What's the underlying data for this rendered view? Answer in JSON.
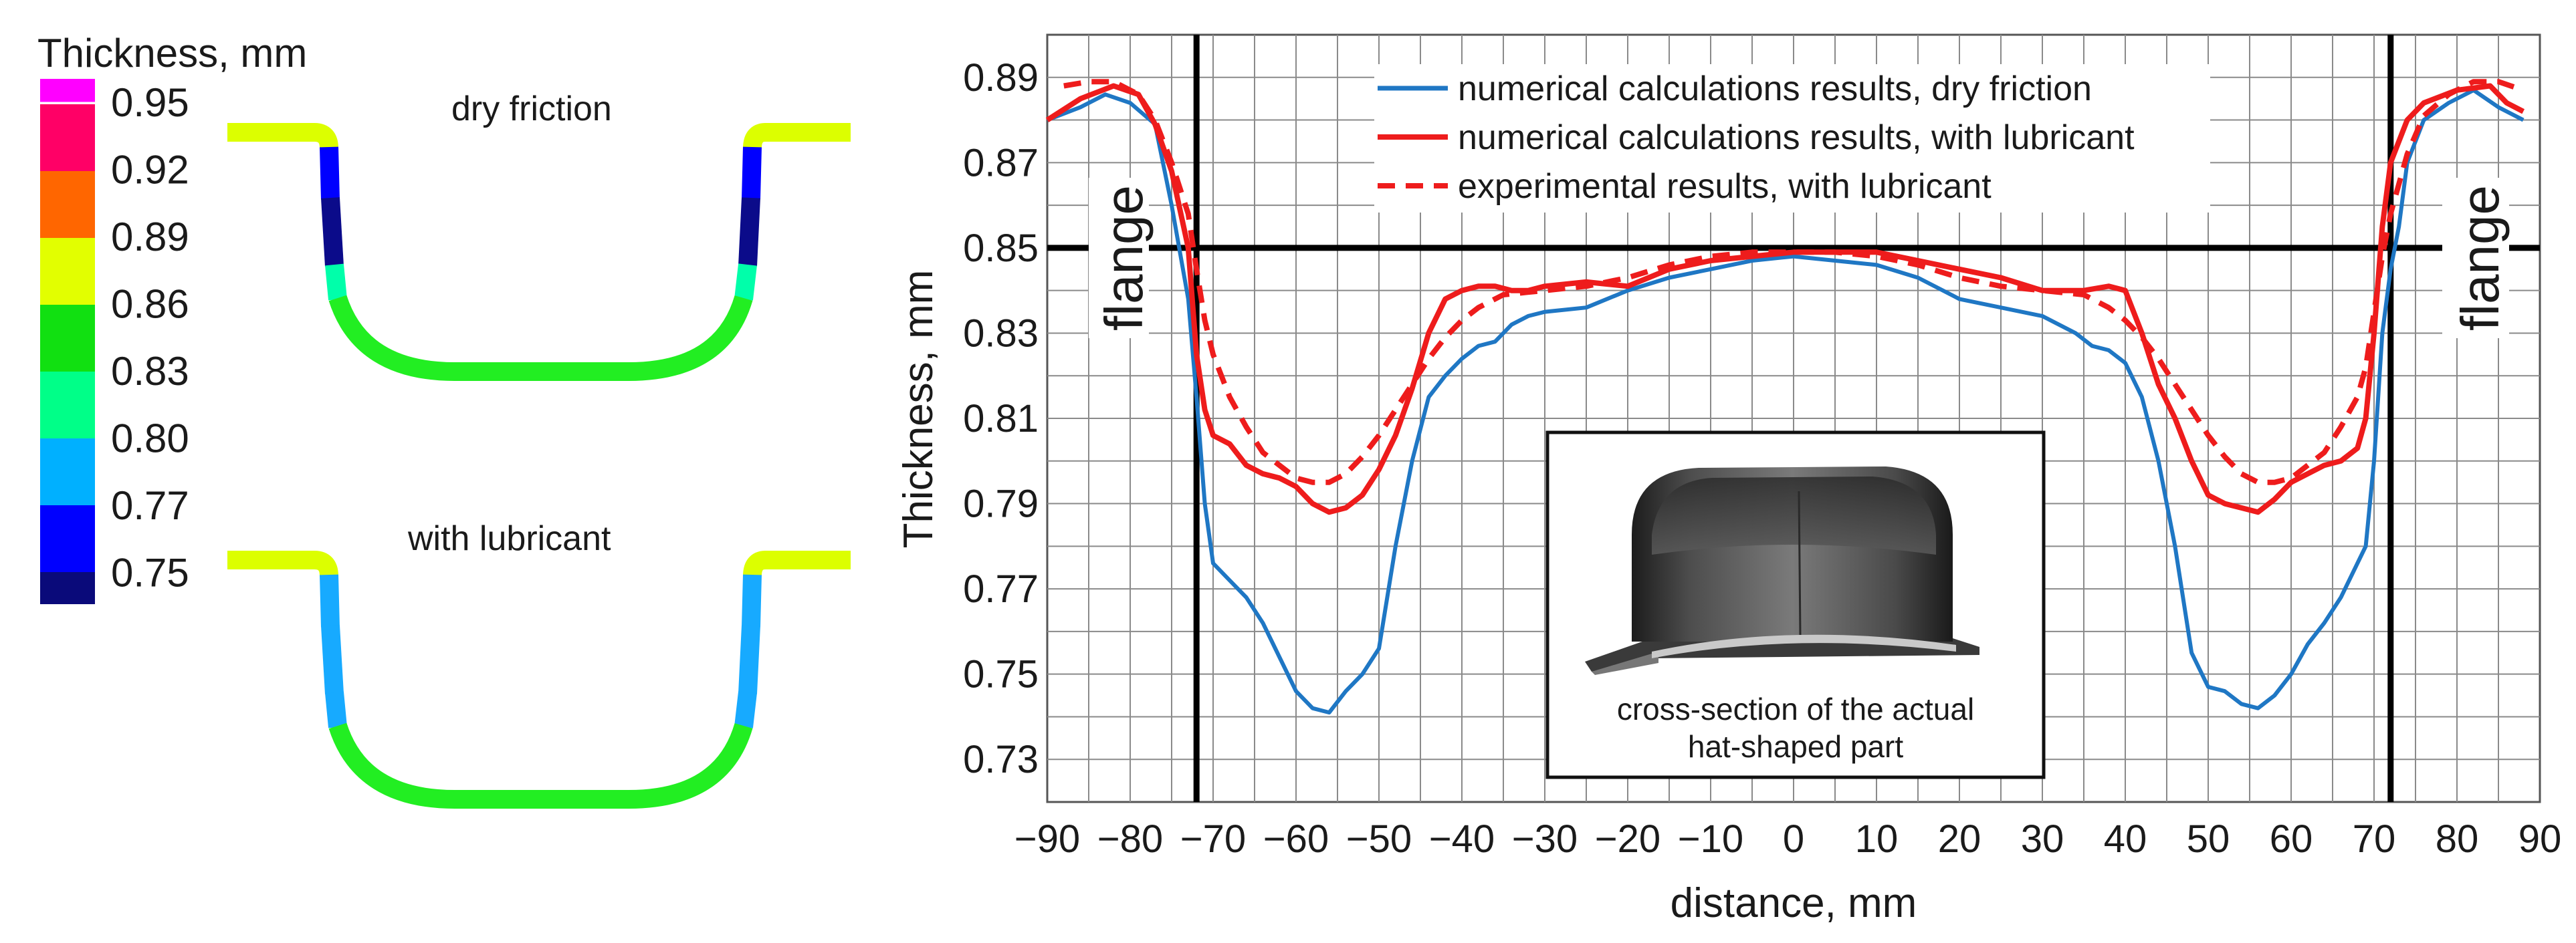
{
  "legend_scale": {
    "title": "Thickness, mm",
    "levels": [
      {
        "label": "0.95",
        "color": "#ff00ff"
      },
      {
        "label": "0.92",
        "color": "#ff0066"
      },
      {
        "label": "0.89",
        "color": "#ff6600"
      },
      {
        "label": "0.86",
        "color": "#e2ff00"
      },
      {
        "label": "0.83",
        "color": "#11e011"
      },
      {
        "label": "0.80",
        "color": "#00ff88"
      },
      {
        "label": "0.77",
        "color": "#00b0ff"
      },
      {
        "label": "0.75",
        "color": "#0000ff"
      }
    ],
    "bottom_color": "#0a0a7a"
  },
  "profiles": {
    "top_label": "dry friction",
    "bottom_label": "with lubricant",
    "colors": {
      "flange": "#dcff00",
      "corner_top": "#22dd22",
      "wall_dry_upper": "#0000ff",
      "wall_dry_lower": "#0b0b8a",
      "wall_lub": "#17aaff",
      "bottom": "#22ee22",
      "transition": "#00ffaa"
    }
  },
  "chart_data": {
    "type": "line",
    "xlabel": "distance, mm",
    "ylabel": "Thickness, mm",
    "xlim": [
      -90,
      90
    ],
    "ylim": [
      0.72,
      0.9
    ],
    "xticks": [
      "−90",
      "−80",
      "−70",
      "−60",
      "−50",
      "−40",
      "−30",
      "−20",
      "−10",
      "0",
      "10",
      "20",
      "30",
      "40",
      "50",
      "60",
      "70",
      "80",
      "90"
    ],
    "yticks": [
      "0.89",
      "0.87",
      "0.85",
      "0.83",
      "0.81",
      "0.79",
      "0.77",
      "0.75",
      "0.73"
    ],
    "grid": true,
    "legend_position": "top-center",
    "series": [
      {
        "name": "numerical calculations results, dry friction",
        "color": "#1f77c4",
        "dash": "solid",
        "points": [
          [
            -90,
            0.88
          ],
          [
            -86,
            0.883
          ],
          [
            -83,
            0.886
          ],
          [
            -80,
            0.884
          ],
          [
            -77,
            0.879
          ],
          [
            -75,
            0.86
          ],
          [
            -73,
            0.838
          ],
          [
            -72,
            0.815
          ],
          [
            -71,
            0.79
          ],
          [
            -70,
            0.776
          ],
          [
            -68,
            0.772
          ],
          [
            -66,
            0.768
          ],
          [
            -64,
            0.762
          ],
          [
            -62,
            0.754
          ],
          [
            -60,
            0.746
          ],
          [
            -58,
            0.742
          ],
          [
            -56,
            0.741
          ],
          [
            -54,
            0.746
          ],
          [
            -52,
            0.75
          ],
          [
            -50,
            0.756
          ],
          [
            -48,
            0.78
          ],
          [
            -46,
            0.8
          ],
          [
            -44,
            0.815
          ],
          [
            -42,
            0.82
          ],
          [
            -40,
            0.824
          ],
          [
            -38,
            0.827
          ],
          [
            -36,
            0.828
          ],
          [
            -34,
            0.832
          ],
          [
            -32,
            0.834
          ],
          [
            -30,
            0.835
          ],
          [
            -25,
            0.836
          ],
          [
            -20,
            0.84
          ],
          [
            -15,
            0.843
          ],
          [
            -10,
            0.845
          ],
          [
            -5,
            0.847
          ],
          [
            0,
            0.848
          ],
          [
            5,
            0.847
          ],
          [
            10,
            0.846
          ],
          [
            15,
            0.843
          ],
          [
            20,
            0.838
          ],
          [
            25,
            0.836
          ],
          [
            30,
            0.834
          ],
          [
            34,
            0.83
          ],
          [
            36,
            0.827
          ],
          [
            38,
            0.826
          ],
          [
            40,
            0.823
          ],
          [
            42,
            0.815
          ],
          [
            44,
            0.8
          ],
          [
            46,
            0.78
          ],
          [
            48,
            0.755
          ],
          [
            50,
            0.747
          ],
          [
            52,
            0.746
          ],
          [
            54,
            0.743
          ],
          [
            56,
            0.742
          ],
          [
            58,
            0.745
          ],
          [
            60,
            0.75
          ],
          [
            62,
            0.757
          ],
          [
            64,
            0.762
          ],
          [
            66,
            0.768
          ],
          [
            68,
            0.776
          ],
          [
            69,
            0.78
          ],
          [
            70,
            0.8
          ],
          [
            71,
            0.83
          ],
          [
            72,
            0.845
          ],
          [
            73,
            0.855
          ],
          [
            74,
            0.87
          ],
          [
            76,
            0.88
          ],
          [
            79,
            0.884
          ],
          [
            82,
            0.887
          ],
          [
            85,
            0.883
          ],
          [
            88,
            0.88
          ]
        ]
      },
      {
        "name": "numerical calculations results, with lubricant",
        "color": "#ee1c1c",
        "dash": "solid",
        "points": [
          [
            -90,
            0.88
          ],
          [
            -86,
            0.885
          ],
          [
            -82,
            0.888
          ],
          [
            -79,
            0.886
          ],
          [
            -77,
            0.879
          ],
          [
            -75,
            0.868
          ],
          [
            -73,
            0.85
          ],
          [
            -72,
            0.825
          ],
          [
            -71,
            0.812
          ],
          [
            -70,
            0.806
          ],
          [
            -68,
            0.804
          ],
          [
            -66,
            0.799
          ],
          [
            -64,
            0.797
          ],
          [
            -62,
            0.796
          ],
          [
            -60,
            0.794
          ],
          [
            -58,
            0.79
          ],
          [
            -56,
            0.788
          ],
          [
            -54,
            0.789
          ],
          [
            -52,
            0.792
          ],
          [
            -50,
            0.798
          ],
          [
            -48,
            0.806
          ],
          [
            -46,
            0.817
          ],
          [
            -44,
            0.83
          ],
          [
            -42,
            0.838
          ],
          [
            -40,
            0.84
          ],
          [
            -38,
            0.841
          ],
          [
            -36,
            0.841
          ],
          [
            -34,
            0.84
          ],
          [
            -32,
            0.84
          ],
          [
            -30,
            0.841
          ],
          [
            -25,
            0.842
          ],
          [
            -20,
            0.841
          ],
          [
            -15,
            0.845
          ],
          [
            -10,
            0.847
          ],
          [
            -5,
            0.848
          ],
          [
            0,
            0.849
          ],
          [
            5,
            0.849
          ],
          [
            10,
            0.849
          ],
          [
            15,
            0.847
          ],
          [
            20,
            0.845
          ],
          [
            25,
            0.843
          ],
          [
            30,
            0.84
          ],
          [
            35,
            0.84
          ],
          [
            38,
            0.841
          ],
          [
            40,
            0.84
          ],
          [
            42,
            0.83
          ],
          [
            44,
            0.818
          ],
          [
            46,
            0.81
          ],
          [
            48,
            0.8
          ],
          [
            50,
            0.792
          ],
          [
            52,
            0.79
          ],
          [
            54,
            0.789
          ],
          [
            56,
            0.788
          ],
          [
            58,
            0.791
          ],
          [
            60,
            0.795
          ],
          [
            62,
            0.797
          ],
          [
            64,
            0.799
          ],
          [
            66,
            0.8
          ],
          [
            68,
            0.803
          ],
          [
            69,
            0.81
          ],
          [
            70,
            0.83
          ],
          [
            71,
            0.855
          ],
          [
            72,
            0.87
          ],
          [
            74,
            0.88
          ],
          [
            76,
            0.884
          ],
          [
            80,
            0.887
          ],
          [
            84,
            0.888
          ],
          [
            86,
            0.884
          ],
          [
            88,
            0.882
          ]
        ]
      },
      {
        "name": "experimental results, with lubricant",
        "color": "#ee1c1c",
        "dash": "dashed",
        "points": [
          [
            -88,
            0.888
          ],
          [
            -85,
            0.889
          ],
          [
            -82,
            0.889
          ],
          [
            -79,
            0.886
          ],
          [
            -77,
            0.88
          ],
          [
            -75,
            0.87
          ],
          [
            -73,
            0.858
          ],
          [
            -72,
            0.845
          ],
          [
            -71,
            0.833
          ],
          [
            -70,
            0.825
          ],
          [
            -68,
            0.815
          ],
          [
            -66,
            0.808
          ],
          [
            -64,
            0.802
          ],
          [
            -62,
            0.799
          ],
          [
            -60,
            0.796
          ],
          [
            -58,
            0.795
          ],
          [
            -56,
            0.795
          ],
          [
            -54,
            0.797
          ],
          [
            -52,
            0.801
          ],
          [
            -50,
            0.806
          ],
          [
            -48,
            0.812
          ],
          [
            -46,
            0.818
          ],
          [
            -44,
            0.824
          ],
          [
            -42,
            0.829
          ],
          [
            -40,
            0.833
          ],
          [
            -38,
            0.836
          ],
          [
            -35,
            0.839
          ],
          [
            -30,
            0.84
          ],
          [
            -25,
            0.841
          ],
          [
            -20,
            0.843
          ],
          [
            -15,
            0.846
          ],
          [
            -10,
            0.848
          ],
          [
            -5,
            0.849
          ],
          [
            0,
            0.849
          ],
          [
            5,
            0.849
          ],
          [
            10,
            0.848
          ],
          [
            15,
            0.846
          ],
          [
            20,
            0.843
          ],
          [
            25,
            0.841
          ],
          [
            30,
            0.84
          ],
          [
            35,
            0.839
          ],
          [
            38,
            0.836
          ],
          [
            40,
            0.833
          ],
          [
            42,
            0.829
          ],
          [
            44,
            0.824
          ],
          [
            46,
            0.818
          ],
          [
            48,
            0.812
          ],
          [
            50,
            0.806
          ],
          [
            52,
            0.801
          ],
          [
            54,
            0.797
          ],
          [
            56,
            0.795
          ],
          [
            58,
            0.795
          ],
          [
            60,
            0.796
          ],
          [
            62,
            0.799
          ],
          [
            64,
            0.802
          ],
          [
            66,
            0.808
          ],
          [
            68,
            0.815
          ],
          [
            69,
            0.822
          ],
          [
            70,
            0.835
          ],
          [
            71,
            0.848
          ],
          [
            72,
            0.858
          ],
          [
            74,
            0.872
          ],
          [
            76,
            0.881
          ],
          [
            79,
            0.886
          ],
          [
            82,
            0.889
          ],
          [
            85,
            0.889
          ],
          [
            88,
            0.887
          ]
        ]
      }
    ],
    "reference_lines": {
      "x": [
        -72,
        72
      ],
      "y": 0.85
    },
    "annotations": [
      {
        "text": "flange",
        "side": "left"
      },
      {
        "text": "flange",
        "side": "right"
      }
    ],
    "inset": {
      "caption_line1": "cross-section of the actual",
      "caption_line2": "hat-shaped part"
    }
  }
}
